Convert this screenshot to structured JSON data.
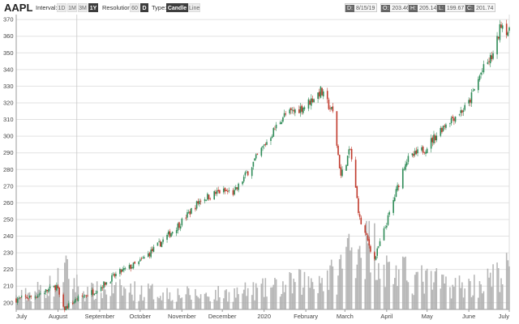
{
  "toolbar": {
    "symbol": "AAPL",
    "interval_label": "Interval:",
    "intervals": [
      "1D",
      "1M",
      "3M",
      "1Y"
    ],
    "interval_selected": "1Y",
    "resolution_label": "Resolution:",
    "resolutions": [
      "60",
      "D"
    ],
    "resolution_selected": "D",
    "type_label": "Type:",
    "types": [
      "Candle",
      "Line"
    ],
    "type_selected": "Candle"
  },
  "ohlc_readout": {
    "d": {
      "key": "D:",
      "value": "8/15/19"
    },
    "o": {
      "key": "O:",
      "value": "203.46"
    },
    "h": {
      "key": "H:",
      "value": "205.14"
    },
    "l": {
      "key": "L:",
      "value": "199.67"
    },
    "c": {
      "key": "C:",
      "value": "201.74"
    }
  },
  "chart_data": {
    "type": "candlestick",
    "ylim": [
      196,
      373
    ],
    "y_ticks": [
      200,
      210,
      220,
      230,
      240,
      250,
      260,
      270,
      280,
      290,
      300,
      310,
      320,
      330,
      340,
      350,
      360,
      370
    ],
    "x_start": "2019-07-01",
    "x_end": "2020-07-01",
    "x_ticks": [
      {
        "date": "2019-07-01",
        "label": "July"
      },
      {
        "date": "2019-08-01",
        "label": "August"
      },
      {
        "date": "2019-09-01",
        "label": "September"
      },
      {
        "date": "2019-10-01",
        "label": "October"
      },
      {
        "date": "2019-11-01",
        "label": "November"
      },
      {
        "date": "2019-12-01",
        "label": "December"
      },
      {
        "date": "2020-01-01",
        "label": "2020"
      },
      {
        "date": "2020-02-01",
        "label": "February"
      },
      {
        "date": "2020-03-01",
        "label": "March"
      },
      {
        "date": "2020-04-01",
        "label": "April"
      },
      {
        "date": "2020-05-01",
        "label": "May"
      },
      {
        "date": "2020-06-01",
        "label": "June"
      },
      {
        "date": "2020-07-01",
        "label": "July"
      }
    ],
    "crosshair_date": "2019-08-15",
    "gridlines": true,
    "up_color": "#2e8b57",
    "down_color": "#c0392b",
    "volume_color": "#aaaaaa",
    "close_anchors": [
      [
        "2019-07-01",
        202
      ],
      [
        "2019-07-15",
        204
      ],
      [
        "2019-07-31",
        210
      ],
      [
        "2019-08-05",
        196
      ],
      [
        "2019-08-15",
        202
      ],
      [
        "2019-08-30",
        208
      ],
      [
        "2019-09-15",
        218
      ],
      [
        "2019-09-30",
        224
      ],
      [
        "2019-10-15",
        235
      ],
      [
        "2019-10-31",
        248
      ],
      [
        "2019-11-15",
        262
      ],
      [
        "2019-11-30",
        267
      ],
      [
        "2019-12-10",
        266
      ],
      [
        "2019-12-31",
        293
      ],
      [
        "2020-01-15",
        312
      ],
      [
        "2020-01-31",
        318
      ],
      [
        "2020-02-12",
        327
      ],
      [
        "2020-02-21",
        314
      ],
      [
        "2020-02-27",
        276
      ],
      [
        "2020-03-05",
        292
      ],
      [
        "2020-03-12",
        250
      ],
      [
        "2020-03-23",
        226
      ],
      [
        "2020-04-01",
        248
      ],
      [
        "2020-04-15",
        285
      ],
      [
        "2020-04-30",
        293
      ],
      [
        "2020-05-15",
        308
      ],
      [
        "2020-05-31",
        318
      ],
      [
        "2020-06-10",
        338
      ],
      [
        "2020-06-20",
        350
      ],
      [
        "2020-06-25",
        368
      ],
      [
        "2020-07-01",
        362
      ]
    ],
    "volume_profile": [
      [
        "2019-07-01",
        4
      ],
      [
        "2019-07-31",
        9
      ],
      [
        "2019-08-05",
        14
      ],
      [
        "2019-08-20",
        6
      ],
      [
        "2019-09-15",
        7
      ],
      [
        "2019-10-15",
        6
      ],
      [
        "2019-11-15",
        5
      ],
      [
        "2019-12-15",
        6
      ],
      [
        "2020-01-15",
        8
      ],
      [
        "2020-02-01",
        10
      ],
      [
        "2020-02-25",
        12
      ],
      [
        "2020-03-01",
        20
      ],
      [
        "2020-03-12",
        24
      ],
      [
        "2020-03-23",
        22
      ],
      [
        "2020-04-01",
        14
      ],
      [
        "2020-04-30",
        10
      ],
      [
        "2020-05-31",
        8
      ],
      [
        "2020-06-15",
        10
      ],
      [
        "2020-07-01",
        14
      ]
    ],
    "volume_max": 25
  }
}
